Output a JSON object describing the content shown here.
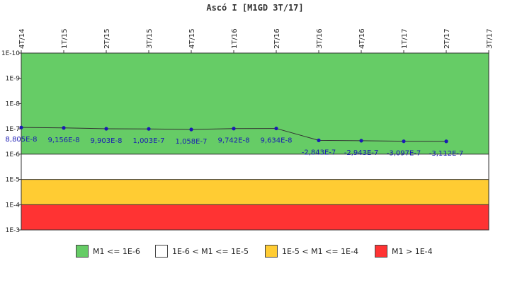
{
  "chart_data": {
    "type": "line",
    "title": "Ascó I [M1GD 3T/17]",
    "y_scale": "log",
    "y_reversed": true,
    "ylim": [
      1e-10,
      0.001
    ],
    "y_tick_values": [
      1e-10,
      1e-09,
      1e-08,
      1e-07,
      1e-06,
      1e-05,
      0.0001,
      0.001
    ],
    "y_tick_labels": [
      "1E-10",
      "1E-9",
      "1E-8",
      "1E-7",
      "1E-6",
      "1E-5",
      "1E-4",
      "1E-3"
    ],
    "categories": [
      "4T/14",
      "1T/15",
      "2T/15",
      "3T/15",
      "4T/15",
      "1T/16",
      "2T/16",
      "3T/16",
      "4T/16",
      "1T/17",
      "2T/17",
      "3T/17"
    ],
    "series": [
      {
        "values": [
          8.805e-08,
          9.156e-08,
          9.903e-08,
          1.003e-07,
          1.058e-07,
          9.742e-08,
          9.634e-08,
          -2.843e-07,
          -2.943e-07,
          -3.097e-07,
          -3.112e-07,
          null
        ],
        "labels": [
          "8,805E-8",
          "9,156E-8",
          "9,903E-8",
          "1,003E-7",
          "1,058E-7",
          "9,742E-8",
          "9,634E-8",
          "-2,843E-7",
          "-2,943E-7",
          "-3,097E-7",
          "-3,112E-7",
          null
        ],
        "color": "#1a1ab4",
        "line_color": "#333333"
      }
    ],
    "bands": [
      {
        "from": 1e-10,
        "to": 1e-06,
        "color": "#66cc66"
      },
      {
        "from": 1e-06,
        "to": 1e-05,
        "color": "#ffffff"
      },
      {
        "from": 1e-05,
        "to": 0.0001,
        "color": "#ffcc33"
      },
      {
        "from": 0.0001,
        "to": 0.001,
        "color": "#ff3333"
      }
    ],
    "legend": {
      "position": "bottom",
      "items": [
        {
          "label": "M1 <= 1E-6",
          "color": "#66cc66"
        },
        {
          "label": "1E-6 < M1 <= 1E-5",
          "color": "#ffffff"
        },
        {
          "label": "1E-5 < M1 <= 1E-4",
          "color": "#ffcc33"
        },
        {
          "label": "M1 > 1E-4",
          "color": "#ff3333"
        }
      ]
    },
    "grid": true
  }
}
